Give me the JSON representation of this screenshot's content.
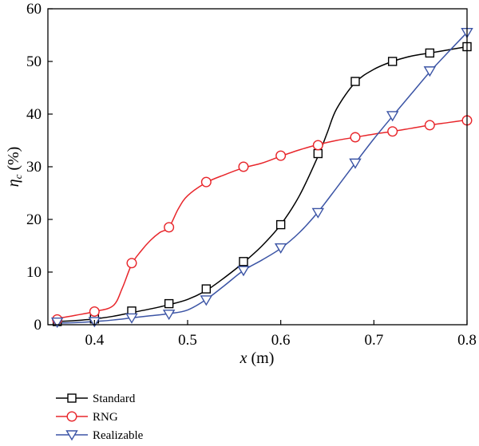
{
  "chart_data": {
    "type": "line",
    "x_axis": {
      "label_var": "x",
      "label_unit": "(m)",
      "range": [
        0.35,
        0.8
      ],
      "ticks": [
        0.4,
        0.5,
        0.6,
        0.7,
        0.8
      ],
      "tick_labels": [
        "0.4",
        "0.5",
        "0.6",
        "0.7",
        "0.8"
      ]
    },
    "y_axis": {
      "label_var": "η",
      "label_sub": "c",
      "label_unit": "(%)",
      "range": [
        0,
        60
      ],
      "ticks": [
        0,
        10,
        20,
        30,
        40,
        50,
        60
      ],
      "tick_labels": [
        "0",
        "10",
        "20",
        "30",
        "40",
        "50",
        "60"
      ]
    },
    "grid": false,
    "legend_position": "bottom-left, below plot",
    "series": [
      {
        "name": "Standard",
        "color": "#000000",
        "marker": "square",
        "curve": [
          [
            0.36,
            0.6
          ],
          [
            0.38,
            0.8
          ],
          [
            0.4,
            1.1
          ],
          [
            0.42,
            1.6
          ],
          [
            0.44,
            2.3
          ],
          [
            0.46,
            3.0
          ],
          [
            0.48,
            3.8
          ],
          [
            0.5,
            4.8
          ],
          [
            0.52,
            6.5
          ],
          [
            0.54,
            9.0
          ],
          [
            0.56,
            11.8
          ],
          [
            0.58,
            15.0
          ],
          [
            0.6,
            19.0
          ],
          [
            0.62,
            24.5
          ],
          [
            0.64,
            32.0
          ],
          [
            0.65,
            36.5
          ],
          [
            0.66,
            41.0
          ],
          [
            0.68,
            46.0
          ],
          [
            0.7,
            48.5
          ],
          [
            0.72,
            50.0
          ],
          [
            0.74,
            51.0
          ],
          [
            0.76,
            51.6
          ],
          [
            0.78,
            52.2
          ],
          [
            0.8,
            52.8
          ]
        ],
        "markers": [
          [
            0.36,
            0.6
          ],
          [
            0.4,
            1.1
          ],
          [
            0.44,
            2.6
          ],
          [
            0.48,
            4.0
          ],
          [
            0.52,
            6.8
          ],
          [
            0.56,
            12.0
          ],
          [
            0.6,
            19.0
          ],
          [
            0.64,
            32.5
          ],
          [
            0.68,
            46.2
          ],
          [
            0.72,
            50.0
          ],
          [
            0.76,
            51.6
          ],
          [
            0.8,
            52.8
          ]
        ]
      },
      {
        "name": "RNG",
        "color": "#e8262b",
        "marker": "circle",
        "curve": [
          [
            0.36,
            1.2
          ],
          [
            0.38,
            1.8
          ],
          [
            0.4,
            2.5
          ],
          [
            0.42,
            3.6
          ],
          [
            0.43,
            7.0
          ],
          [
            0.44,
            11.5
          ],
          [
            0.45,
            14.0
          ],
          [
            0.46,
            16.0
          ],
          [
            0.47,
            17.5
          ],
          [
            0.48,
            18.5
          ],
          [
            0.49,
            22.0
          ],
          [
            0.5,
            24.5
          ],
          [
            0.52,
            27.0
          ],
          [
            0.54,
            28.5
          ],
          [
            0.56,
            29.8
          ],
          [
            0.58,
            30.7
          ],
          [
            0.6,
            32.0
          ],
          [
            0.62,
            33.2
          ],
          [
            0.64,
            34.2
          ],
          [
            0.66,
            35.0
          ],
          [
            0.68,
            35.6
          ],
          [
            0.7,
            36.2
          ],
          [
            0.72,
            36.7
          ],
          [
            0.74,
            37.3
          ],
          [
            0.76,
            37.9
          ],
          [
            0.78,
            38.4
          ],
          [
            0.8,
            38.9
          ]
        ],
        "markers": [
          [
            0.36,
            1.0
          ],
          [
            0.4,
            2.5
          ],
          [
            0.44,
            11.7
          ],
          [
            0.48,
            18.5
          ],
          [
            0.52,
            27.1
          ],
          [
            0.56,
            30.0
          ],
          [
            0.6,
            32.1
          ],
          [
            0.64,
            34.1
          ],
          [
            0.68,
            35.6
          ],
          [
            0.72,
            36.7
          ],
          [
            0.76,
            37.9
          ],
          [
            0.8,
            38.8
          ]
        ]
      },
      {
        "name": "Realizable",
        "color": "#3b54a5",
        "marker": "triangle-down",
        "curve": [
          [
            0.36,
            0.3
          ],
          [
            0.38,
            0.4
          ],
          [
            0.4,
            0.6
          ],
          [
            0.42,
            0.9
          ],
          [
            0.44,
            1.3
          ],
          [
            0.46,
            1.7
          ],
          [
            0.48,
            2.1
          ],
          [
            0.5,
            2.8
          ],
          [
            0.52,
            4.8
          ],
          [
            0.54,
            7.5
          ],
          [
            0.56,
            10.3
          ],
          [
            0.58,
            12.3
          ],
          [
            0.6,
            14.5
          ],
          [
            0.62,
            17.5
          ],
          [
            0.64,
            21.4
          ],
          [
            0.66,
            26.0
          ],
          [
            0.68,
            30.7
          ],
          [
            0.7,
            35.3
          ],
          [
            0.72,
            39.6
          ],
          [
            0.74,
            43.8
          ],
          [
            0.76,
            48.0
          ],
          [
            0.78,
            51.8
          ],
          [
            0.8,
            55.5
          ]
        ],
        "markers": [
          [
            0.36,
            0.5
          ],
          [
            0.4,
            0.6
          ],
          [
            0.44,
            1.3
          ],
          [
            0.48,
            2.0
          ],
          [
            0.52,
            4.7
          ],
          [
            0.56,
            10.3
          ],
          [
            0.6,
            14.6
          ],
          [
            0.64,
            21.3
          ],
          [
            0.68,
            30.7
          ],
          [
            0.72,
            39.7
          ],
          [
            0.76,
            48.2
          ],
          [
            0.8,
            55.5
          ]
        ]
      }
    ]
  }
}
